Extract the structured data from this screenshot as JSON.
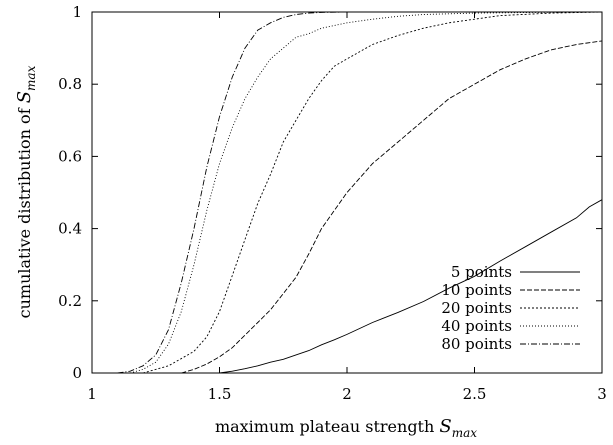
{
  "chart_data": {
    "type": "line",
    "title": "",
    "xlabel": "maximum plateau strength",
    "xlabel_symbol": "S",
    "xlabel_subscript": "max",
    "ylabel": "cumulative distribution of",
    "ylabel_symbol": "S",
    "ylabel_subscript": "max",
    "xlim": [
      1,
      3
    ],
    "ylim": [
      0,
      1
    ],
    "x_ticks": [
      1,
      1.5,
      2,
      2.5,
      3
    ],
    "x_tick_labels": [
      "1",
      "1.5",
      "2",
      "2.5",
      "3"
    ],
    "y_ticks": [
      0,
      0.2,
      0.4,
      0.6,
      0.8,
      1
    ],
    "y_tick_labels": [
      "0",
      "0.2",
      "0.4",
      "0.6",
      "0.8",
      "1"
    ],
    "grid": false,
    "legend_position": "bottom-right",
    "series": [
      {
        "name": "5 points",
        "dash": "",
        "x": [
          1.5,
          1.55,
          1.6,
          1.65,
          1.7,
          1.75,
          1.8,
          1.85,
          1.9,
          1.95,
          2.0,
          2.1,
          2.2,
          2.3,
          2.4,
          2.5,
          2.6,
          2.7,
          2.8,
          2.9,
          2.95,
          3.0
        ],
        "y": [
          0.0,
          0.005,
          0.012,
          0.02,
          0.03,
          0.038,
          0.05,
          0.062,
          0.078,
          0.092,
          0.107,
          0.14,
          0.168,
          0.198,
          0.235,
          0.268,
          0.31,
          0.35,
          0.39,
          0.43,
          0.46,
          0.48
        ]
      },
      {
        "name": "10 points",
        "dash": "5,2",
        "x": [
          1.35,
          1.4,
          1.45,
          1.5,
          1.55,
          1.6,
          1.65,
          1.7,
          1.75,
          1.8,
          1.85,
          1.9,
          1.95,
          2.0,
          2.05,
          2.1,
          2.2,
          2.3,
          2.4,
          2.5,
          2.6,
          2.7,
          2.8,
          2.9,
          3.0
        ],
        "y": [
          0.0,
          0.01,
          0.025,
          0.045,
          0.07,
          0.105,
          0.14,
          0.175,
          0.22,
          0.265,
          0.33,
          0.4,
          0.45,
          0.5,
          0.54,
          0.58,
          0.64,
          0.7,
          0.76,
          0.8,
          0.84,
          0.87,
          0.895,
          0.91,
          0.92
        ]
      },
      {
        "name": "20 points",
        "dash": "2,2",
        "x": [
          1.2,
          1.25,
          1.3,
          1.35,
          1.4,
          1.45,
          1.5,
          1.55,
          1.6,
          1.65,
          1.7,
          1.75,
          1.8,
          1.85,
          1.9,
          1.95,
          2.0,
          2.1,
          2.2,
          2.3,
          2.4,
          2.5,
          2.6,
          2.8,
          3.0
        ],
        "y": [
          0.0,
          0.01,
          0.02,
          0.04,
          0.06,
          0.1,
          0.17,
          0.27,
          0.37,
          0.47,
          0.55,
          0.64,
          0.7,
          0.76,
          0.81,
          0.85,
          0.87,
          0.91,
          0.935,
          0.955,
          0.97,
          0.98,
          0.99,
          0.997,
          1.0
        ]
      },
      {
        "name": "40 points",
        "dash": "1,2",
        "x": [
          1.15,
          1.2,
          1.25,
          1.3,
          1.35,
          1.4,
          1.45,
          1.5,
          1.55,
          1.6,
          1.65,
          1.7,
          1.75,
          1.8,
          1.85,
          1.9,
          2.0,
          2.1,
          2.2,
          2.3,
          2.5,
          2.75,
          3.0
        ],
        "y": [
          0.0,
          0.01,
          0.03,
          0.08,
          0.17,
          0.3,
          0.45,
          0.58,
          0.68,
          0.76,
          0.82,
          0.87,
          0.9,
          0.93,
          0.94,
          0.955,
          0.97,
          0.98,
          0.988,
          0.993,
          0.997,
          0.999,
          1.0
        ]
      },
      {
        "name": "80 points",
        "dash": "6,2,1,2",
        "x": [
          1.1,
          1.15,
          1.2,
          1.25,
          1.3,
          1.35,
          1.4,
          1.45,
          1.5,
          1.55,
          1.6,
          1.65,
          1.7,
          1.75,
          1.8,
          1.85,
          1.9,
          2.0,
          2.1,
          2.2,
          2.3
        ],
        "y": [
          0.0,
          0.005,
          0.02,
          0.05,
          0.12,
          0.25,
          0.4,
          0.57,
          0.71,
          0.82,
          0.9,
          0.95,
          0.97,
          0.985,
          0.993,
          0.997,
          0.999,
          1.0,
          1.0,
          1.0,
          1.0
        ]
      }
    ]
  }
}
